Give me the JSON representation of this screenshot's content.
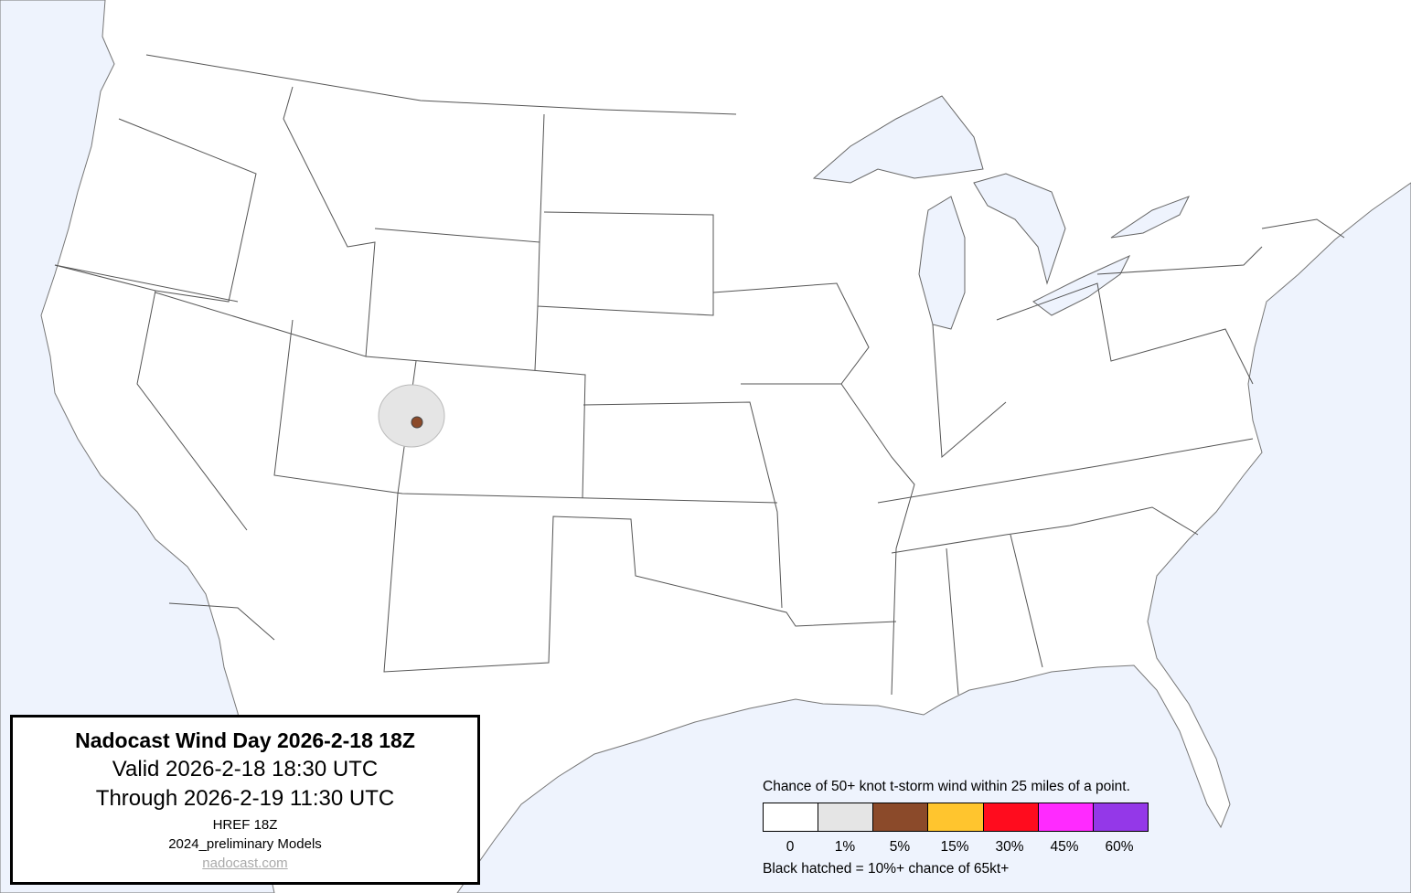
{
  "title_box": {
    "title": "Nadocast Wind Day 2026-2-18 18Z",
    "valid": "Valid 2026-2-18 18:30 UTC",
    "through": "Through 2026-2-19 11:30 UTC",
    "model_run": "HREF 18Z",
    "models": "2024_preliminary Models",
    "link": "nadocast.com"
  },
  "legend": {
    "caption": "Chance of 50+ knot t-storm wind within 25 miles of a point.",
    "bins": [
      {
        "label": "0",
        "color": "#ffffff"
      },
      {
        "label": "1%",
        "color": "#e5e5e5"
      },
      {
        "label": "5%",
        "color": "#8b4a2a"
      },
      {
        "label": "15%",
        "color": "#ffc52e"
      },
      {
        "label": "30%",
        "color": "#ff0c1e"
      },
      {
        "label": "45%",
        "color": "#ff2aff"
      },
      {
        "label": "60%",
        "color": "#9438e8"
      }
    ],
    "note": "Black hatched = 10%+ chance of 65kt+"
  },
  "map": {
    "water_color": "#eef3fd",
    "land_color": "#ffffff",
    "forecast_areas": [
      {
        "category": "1%",
        "region": "western Colorado / eastern Utah"
      },
      {
        "category": "5%",
        "region": "western Colorado"
      }
    ]
  }
}
